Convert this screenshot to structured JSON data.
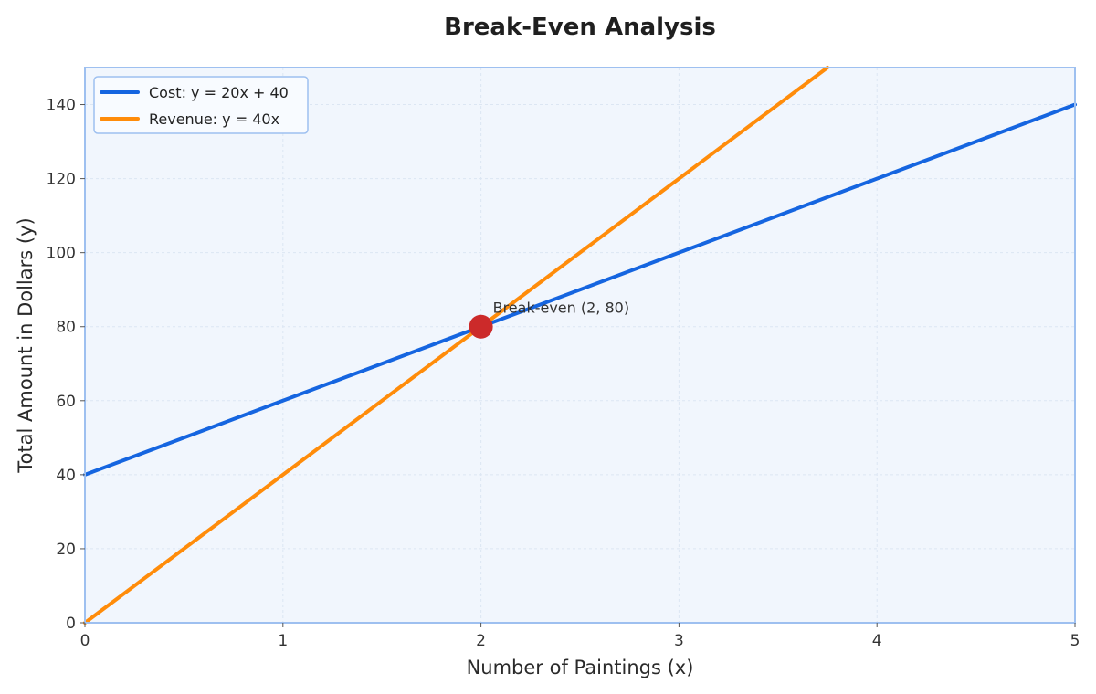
{
  "chart_data": {
    "type": "line",
    "title": "Break-Even Analysis",
    "xlabel": "Number of Paintings (x)",
    "ylabel": "Total Amount in Dollars (y)",
    "xlim": [
      0,
      5
    ],
    "ylim": [
      0,
      150
    ],
    "x_ticks": [
      0,
      1,
      2,
      3,
      4,
      5
    ],
    "y_ticks": [
      0,
      20,
      40,
      60,
      80,
      100,
      120,
      140
    ],
    "grid": true,
    "legend_position": "top-left",
    "series": [
      {
        "name": "Cost: y = 20x + 40",
        "color": "#1565e0",
        "x": [
          0,
          1,
          2,
          3,
          4,
          5
        ],
        "y": [
          40,
          60,
          80,
          100,
          120,
          140
        ]
      },
      {
        "name": "Revenue: y = 40x",
        "color": "#ff8c0a",
        "x": [
          0,
          1,
          2,
          3,
          3.75
        ],
        "y": [
          0,
          40,
          80,
          120,
          150
        ]
      }
    ],
    "annotations": [
      {
        "text": "Break-even (2, 80)",
        "x": 2,
        "y": 80,
        "marker_color": "#cc2a2a"
      }
    ],
    "colors": {
      "plot_background": "#f1f6fd",
      "plot_border": "#9ec0f0",
      "grid": "#dce6f3"
    }
  }
}
